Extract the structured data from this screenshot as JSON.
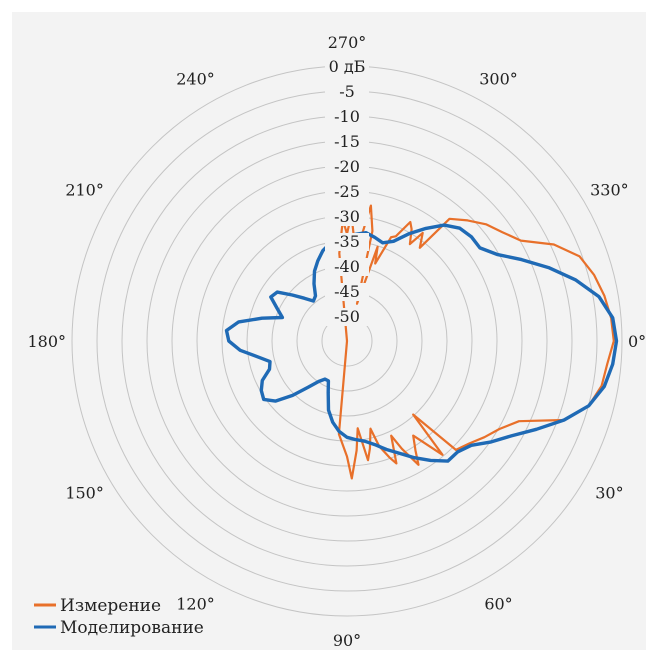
{
  "chart_data": {
    "type": "polar-line",
    "radial_unit": "дБ",
    "radial_ticks": [
      "0 дБ",
      "-5",
      "-10",
      "-15",
      "-20",
      "-25",
      "-30",
      "-35",
      "-40",
      "-45",
      "-50"
    ],
    "r_range_db": [
      -50,
      0
    ],
    "angle_ticks": [
      "0°",
      "30°",
      "60°",
      "90°",
      "120°",
      "150°",
      "180°",
      "210°",
      "240°",
      "270°",
      "300°",
      "330°"
    ],
    "angle_direction": "clockwise from right",
    "legend_placement": "bottom-left",
    "series": [
      {
        "name": "Измерение",
        "color": "#e8702a",
        "angles_deg": [
          0,
          5,
          10,
          15,
          20,
          25,
          30,
          35,
          40,
          45,
          48,
          50,
          55,
          58,
          60,
          63,
          65,
          68,
          70,
          73,
          75,
          78,
          80,
          83,
          85,
          88,
          90,
          95,
          100,
          180,
          260,
          265,
          268,
          270,
          272,
          275,
          278,
          280,
          283,
          285,
          288,
          290,
          293,
          295,
          298,
          300,
          303,
          305,
          308,
          310,
          315,
          320,
          325,
          330,
          335,
          340,
          345,
          350,
          355
        ],
        "values_db": [
          -1.5,
          -2.5,
          -3.0,
          -4.5,
          -8.0,
          -15.5,
          -18.0,
          -19.5,
          -21.0,
          -22.0,
          -32.0,
          -23.0,
          -29.0,
          -26.5,
          -24.0,
          -28.0,
          -31.0,
          -26.0,
          -27.5,
          -30.0,
          -33.5,
          -30.0,
          -28.0,
          -34.0,
          -30.0,
          -25.0,
          -29.0,
          -33.0,
          -50,
          -50,
          -50,
          -34.0,
          -28.0,
          -30.5,
          -27.0,
          -33.0,
          -30.5,
          -25.0,
          -29.5,
          -43.0,
          -32.0,
          -35.0,
          -29.5,
          -29.0,
          -25.5,
          -26.5,
          -29.0,
          -26.0,
          -28.5,
          -21.0,
          -19.0,
          -17.0,
          -15.5,
          -13.5,
          -8.5,
          -5.0,
          -3.5,
          -2.5,
          -1.8
        ]
      },
      {
        "name": "Моделирование",
        "color": "#1f6ab5",
        "angles_deg": [
          0,
          5,
          10,
          15,
          20,
          25,
          30,
          35,
          40,
          45,
          50,
          55,
          60,
          65,
          70,
          75,
          80,
          85,
          90,
          95,
          100,
          105,
          110,
          115,
          120,
          125,
          130,
          135,
          140,
          145,
          150,
          155,
          160,
          165,
          170,
          175,
          180,
          185,
          190,
          195,
          200,
          205,
          210,
          215,
          220,
          225,
          230,
          235,
          240,
          245,
          250,
          255,
          260,
          265,
          270,
          275,
          280,
          285,
          290,
          295,
          300,
          305,
          310,
          315,
          320,
          325,
          330,
          335,
          340,
          345,
          350,
          355
        ],
        "values_db": [
          -1.0,
          -1.5,
          -2.5,
          -4.5,
          -8.0,
          -12.0,
          -15.5,
          -18.0,
          -20.5,
          -21.5,
          -21.5,
          -23.5,
          -25.5,
          -27.5,
          -29.0,
          -30.5,
          -31.5,
          -32.0,
          -32.5,
          -33.5,
          -35.0,
          -37.0,
          -40.0,
          -42.0,
          -42.0,
          -41.0,
          -39.0,
          -36.0,
          -33.0,
          -31.5,
          -32.0,
          -33.0,
          -35.0,
          -35.5,
          -33.5,
          -30.5,
          -28.5,
          -28.0,
          -30.0,
          -34.0,
          -37.5,
          -36.0,
          -34.0,
          -34.5,
          -37.0,
          -39.0,
          -40.5,
          -40.0,
          -38.0,
          -36.0,
          -34.5,
          -33.0,
          -32.0,
          -31.5,
          -31.0,
          -30.5,
          -30.0,
          -30.5,
          -31.0,
          -30.0,
          -27.5,
          -25.0,
          -22.5,
          -21.0,
          -20.5,
          -20.5,
          -18.5,
          -15.0,
          -11.0,
          -7.0,
          -3.5,
          -1.5
        ]
      }
    ]
  }
}
